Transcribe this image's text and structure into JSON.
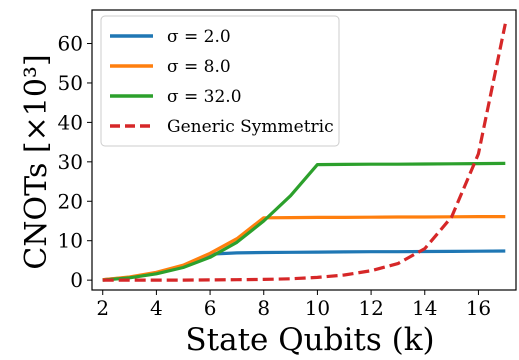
{
  "chart_data": {
    "type": "line",
    "xlabel": "State Qubits (k)",
    "ylabel": "CNOTs [×10³]",
    "xlim": [
      1.6,
      17.4
    ],
    "ylim": [
      -2.5,
      68.5
    ],
    "xticks": [
      2,
      4,
      6,
      8,
      10,
      12,
      14,
      16
    ],
    "yticks": [
      0,
      10,
      20,
      30,
      40,
      50,
      60
    ],
    "legend_position": "top-left",
    "series": [
      {
        "name": "σ = 2.0",
        "color": "#1f77b4",
        "style": "solid",
        "x": [
          2,
          3,
          4,
          5,
          6,
          7,
          8,
          9,
          10,
          11,
          12,
          13,
          14,
          15,
          16,
          17
        ],
        "y": [
          0.1,
          0.7,
          1.8,
          3.6,
          6.6,
          6.9,
          7.0,
          7.05,
          7.1,
          7.15,
          7.2,
          7.2,
          7.25,
          7.3,
          7.35,
          7.4
        ]
      },
      {
        "name": "σ = 8.0",
        "color": "#ff7f0e",
        "style": "solid",
        "x": [
          2,
          3,
          4,
          5,
          6,
          7,
          8,
          9,
          10,
          11,
          12,
          13,
          14,
          15,
          16,
          17
        ],
        "y": [
          0.1,
          0.8,
          2.0,
          3.8,
          6.8,
          10.5,
          15.8,
          15.85,
          15.9,
          15.9,
          15.95,
          16.0,
          16.0,
          16.05,
          16.1,
          16.1
        ]
      },
      {
        "name": "σ = 32.0",
        "color": "#2ca02c",
        "style": "solid",
        "x": [
          2,
          3,
          4,
          5,
          6,
          7,
          8,
          9,
          10,
          11,
          12,
          13,
          14,
          15,
          16,
          17
        ],
        "y": [
          0.0,
          0.6,
          1.6,
          3.2,
          5.8,
          9.6,
          15.0,
          21.4,
          29.3,
          29.35,
          29.4,
          29.4,
          29.45,
          29.5,
          29.55,
          29.6
        ]
      },
      {
        "name": "Generic Symmetric",
        "color": "#d62728",
        "style": "dashed",
        "x": [
          2,
          3,
          4,
          5,
          6,
          7,
          8,
          9,
          10,
          11,
          12,
          13,
          14,
          15,
          16,
          17
        ],
        "y": [
          0.0,
          0.0,
          0.0,
          0.0,
          0.05,
          0.1,
          0.2,
          0.35,
          0.7,
          1.3,
          2.4,
          4.2,
          8.0,
          16.0,
          32.0,
          65.0
        ]
      }
    ]
  }
}
